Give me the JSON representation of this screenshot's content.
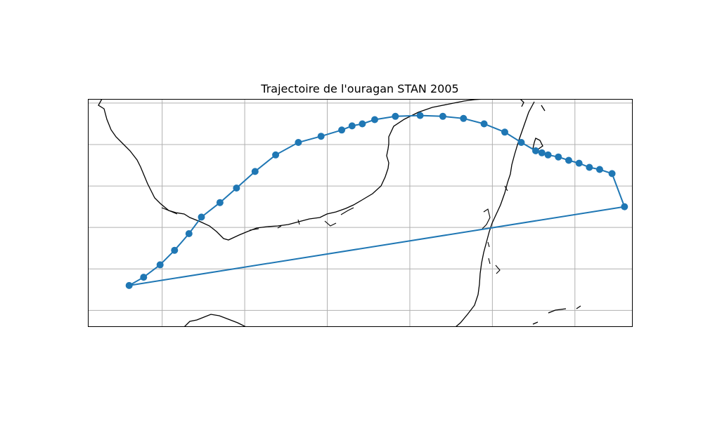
{
  "title": "Trajectoire de l'ouragan STAN 2005",
  "colors": {
    "track": "#1f77b4",
    "grid": "#b0b0b0",
    "coast": "#000000",
    "frame": "#000000"
  },
  "chart_data": {
    "type": "map-track",
    "title": "Trajectoire de l'ouragan STAN 2005",
    "projection": "PlateCarree",
    "extent": {
      "lon": [
        -98.8,
        -85.6
      ],
      "lat": [
        14.6,
        20.1
      ]
    },
    "gridlines": {
      "lon": [
        -97,
        -95,
        -93,
        -91,
        -89,
        -87
      ],
      "lat": [
        15,
        16,
        17,
        18,
        19,
        20
      ]
    },
    "grid": true,
    "tick_labels": false,
    "series": [
      {
        "marker": "circle",
        "line": "solid",
        "points": [
          [
            -97.8,
            15.6
          ],
          [
            -97.45,
            15.8
          ],
          [
            -97.05,
            16.1
          ],
          [
            -96.7,
            16.45
          ],
          [
            -96.35,
            16.85
          ],
          [
            -96.05,
            17.25
          ],
          [
            -95.6,
            17.6
          ],
          [
            -95.2,
            17.95
          ],
          [
            -94.75,
            18.35
          ],
          [
            -94.25,
            18.75
          ],
          [
            -93.7,
            19.05
          ],
          [
            -93.15,
            19.2
          ],
          [
            -92.65,
            19.35
          ],
          [
            -92.4,
            19.45
          ],
          [
            -92.15,
            19.5
          ],
          [
            -91.85,
            19.6
          ],
          [
            -91.35,
            19.68
          ],
          [
            -90.75,
            19.7
          ],
          [
            -90.2,
            19.68
          ],
          [
            -89.7,
            19.63
          ],
          [
            -89.2,
            19.5
          ],
          [
            -88.7,
            19.3
          ],
          [
            -88.3,
            19.05
          ],
          [
            -87.95,
            18.85
          ],
          [
            -87.8,
            18.8
          ],
          [
            -87.65,
            18.75
          ],
          [
            -87.4,
            18.7
          ],
          [
            -87.15,
            18.62
          ],
          [
            -86.9,
            18.55
          ],
          [
            -86.65,
            18.45
          ],
          [
            -86.4,
            18.4
          ],
          [
            -86.1,
            18.3
          ],
          [
            -85.8,
            17.5
          ]
        ]
      },
      {
        "marker": "none",
        "line": "solid",
        "points": [
          [
            -85.8,
            17.5
          ],
          [
            -97.8,
            15.6
          ]
        ]
      }
    ]
  }
}
